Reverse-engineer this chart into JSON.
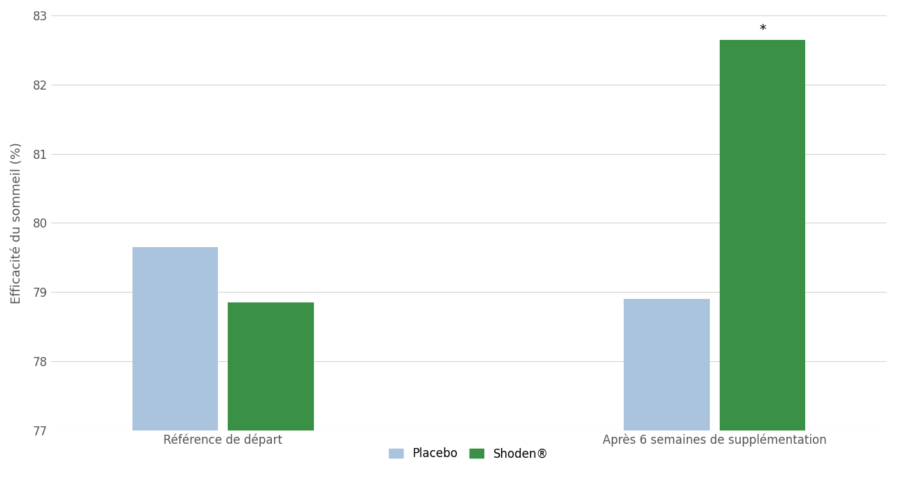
{
  "groups": [
    "Référence de départ",
    "Après 6 semaines de supplémentation"
  ],
  "placebo_values": [
    79.65,
    78.9
  ],
  "shoden_values": [
    78.85,
    82.65
  ],
  "placebo_color": "#abc4de",
  "shoden_color": "#3a9145",
  "ylabel": "Efficacité du sommeil (%)",
  "ylim": [
    77,
    83
  ],
  "yticks": [
    77,
    78,
    79,
    80,
    81,
    82,
    83
  ],
  "bar_width": 0.35,
  "legend_labels": [
    "Placebo",
    "Shoden®"
  ],
  "asterisk_value": 82.65,
  "background_color": "#ffffff",
  "grid_color": "#c8c8c8",
  "text_color": "#555555",
  "font_size_ticks": 12,
  "font_size_ylabel": 13,
  "font_size_xticks": 12,
  "font_size_legend": 12
}
